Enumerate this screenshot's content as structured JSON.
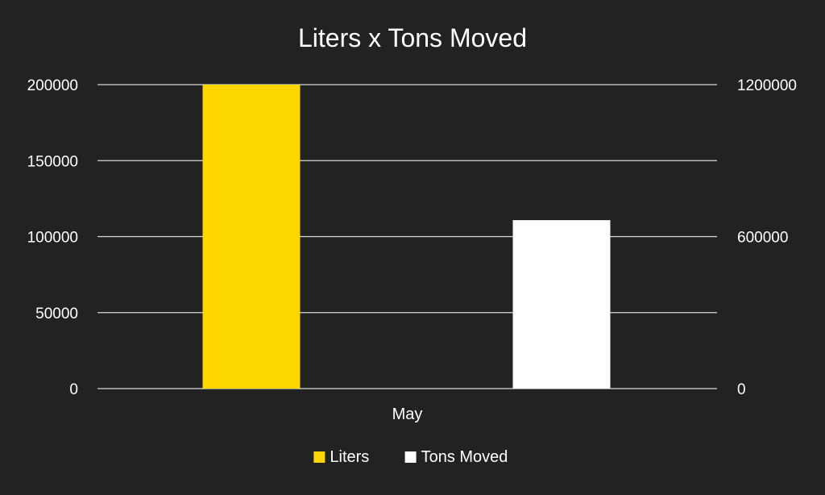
{
  "chart_data": {
    "type": "bar",
    "title": "Liters x Tons Moved",
    "categories": [
      "May"
    ],
    "series": [
      {
        "name": "Liters",
        "axis": "primary",
        "values": [
          200000
        ],
        "color": "#FFD700"
      },
      {
        "name": "Tons Moved",
        "axis": "secondary",
        "values": [
          665000
        ],
        "color": "#FFFFFF"
      }
    ],
    "y_primary": {
      "lim": [
        0,
        200000
      ],
      "ticks": [
        0,
        50000,
        100000,
        150000,
        200000
      ],
      "tick_labels": [
        "0",
        "50000",
        "100000",
        "150000",
        "200000"
      ]
    },
    "y_secondary": {
      "lim": [
        0,
        1200000
      ],
      "ticks": [
        0,
        600000,
        1200000
      ],
      "tick_labels": [
        "0",
        "600000",
        "1200000"
      ]
    },
    "grid": true,
    "legend_position": "bottom",
    "background_color": "#222222",
    "text_color": "#FFFFFF",
    "grid_color": "#D9D9D9"
  }
}
